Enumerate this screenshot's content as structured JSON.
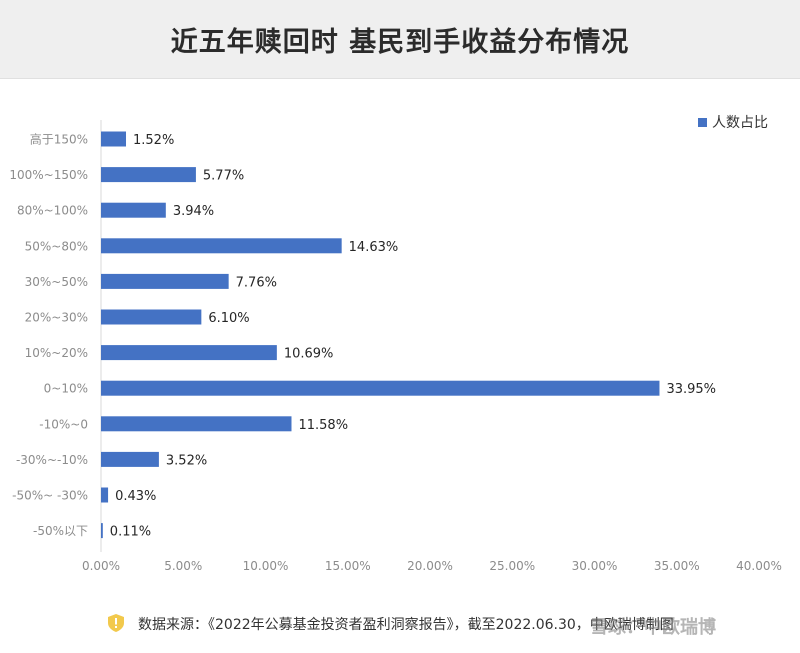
{
  "header": {
    "title": "近五年赎回时  基民到手收益分布情况"
  },
  "chart_data": {
    "type": "bar",
    "orientation": "horizontal",
    "categories": [
      "高于150%",
      "100%~150%",
      "80%~100%",
      "50%~80%",
      "30%~50%",
      "20%~30%",
      "10%~20%",
      "0~10%",
      "-10%~0",
      "-30%~-10%",
      "-50%~ -30%",
      "-50%以下"
    ],
    "series": [
      {
        "name": "人数占比",
        "values": [
          1.52,
          5.77,
          3.94,
          14.63,
          7.76,
          6.1,
          10.69,
          33.95,
          11.58,
          3.52,
          0.43,
          0.11
        ]
      }
    ],
    "value_labels": [
      "1.52%",
      "5.77%",
      "3.94%",
      "14.63%",
      "7.76%",
      "6.10%",
      "10.69%",
      "33.95%",
      "11.58%",
      "3.52%",
      "0.43%",
      "0.11%"
    ],
    "x_ticks": [
      "0.00%",
      "5.00%",
      "10.00%",
      "15.00%",
      "20.00%",
      "25.00%",
      "30.00%",
      "35.00%",
      "40.00%"
    ],
    "xlim": [
      0,
      40
    ],
    "grid": false,
    "legend_position": "top-right",
    "bar_color": "#4472c4"
  },
  "footer": {
    "source": "数据来源：《2022年公募基金投资者盈利洞察报告》，截至2022.06.30，中欧瑞博制图",
    "watermark": "雪球：中欧瑞博",
    "icon": "shield-icon"
  }
}
